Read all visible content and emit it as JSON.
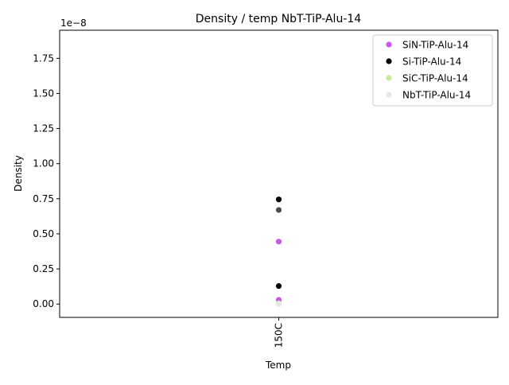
{
  "chart_data": {
    "type": "scatter",
    "title": "Density / temp NbT-TiP-Alu-14",
    "xlabel": "Temp",
    "ylabel": "Density",
    "categories": [
      "150C"
    ],
    "x_tick_rotation": 90,
    "y_scale_label": "1e−8",
    "ylim": [
      -0.095,
      1.95
    ],
    "yticks": [
      0.0,
      0.25,
      0.5,
      0.75,
      1.0,
      1.25,
      1.5,
      1.75
    ],
    "ytick_labels": [
      "0.00",
      "0.25",
      "0.50",
      "0.75",
      "1.00",
      "1.25",
      "1.50",
      "1.75"
    ],
    "grid": false,
    "legend_position": "upper right",
    "series": [
      {
        "name": "SiN-TiP-Alu-14",
        "color": "#cc55ee",
        "points": [
          {
            "x": "150C",
            "y": 0.445
          },
          {
            "x": "150C",
            "y": 0.03
          }
        ]
      },
      {
        "name": "Si-TiP-Alu-14",
        "color": "#000000",
        "points": [
          {
            "x": "150C",
            "y": 0.745
          },
          {
            "x": "150C",
            "y": 0.128
          }
        ]
      },
      {
        "name": "SiC-TiP-Alu-14",
        "color": "#c4ea9a",
        "points": [
          {
            "x": "150C",
            "y": 0.005
          }
        ]
      },
      {
        "name": "NbT-TiP-Alu-14",
        "color": "#e6e6e6",
        "points": [
          {
            "x": "150C",
            "y": 0.0
          }
        ]
      },
      {
        "name": "",
        "color": "#4d4d4d",
        "points": [
          {
            "x": "150C",
            "y": 0.67
          }
        ]
      }
    ]
  }
}
